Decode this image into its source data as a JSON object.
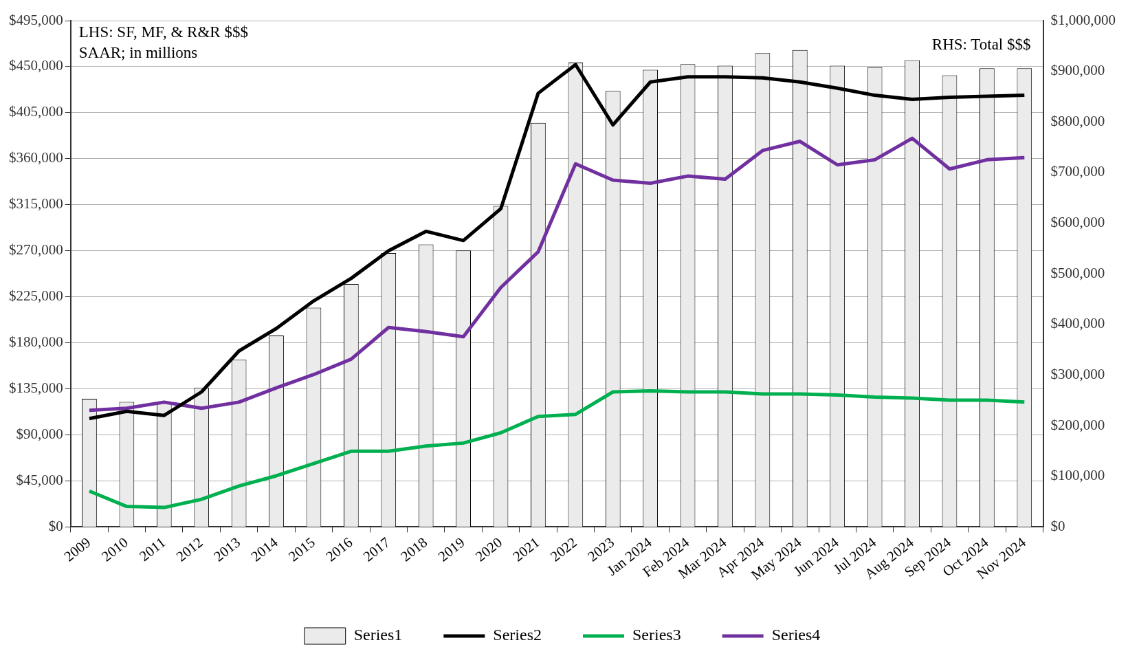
{
  "chart_data": {
    "type": "bar",
    "categories": [
      "2009",
      "2010",
      "2011",
      "2012",
      "2013",
      "2014",
      "2015",
      "2016",
      "2017",
      "2018",
      "2019",
      "2020",
      "2021",
      "2022",
      "2023",
      "Jan 2024",
      "Feb 2024",
      "Mar 2024",
      "Apr 2024",
      "May 2024",
      "Jun 2024",
      "Jul 2024",
      "Aug 2024",
      "Sep 2024",
      "Oct 2024",
      "Nov 2024"
    ],
    "series": [
      {
        "name": "Series1",
        "axis": "y2",
        "color": "#ebebeb",
        "values": [
          253000,
          247000,
          247000,
          275000,
          330000,
          378000,
          433000,
          480000,
          541000,
          558000,
          546000,
          634000,
          798000,
          917000,
          861000,
          903000,
          914000,
          911000,
          936000,
          942000,
          911000,
          908000,
          922000,
          892000,
          906000,
          906000
        ]
      },
      {
        "name": "Series2",
        "type": "line",
        "color": "#000000",
        "values": [
          106000,
          113000,
          109000,
          132000,
          172000,
          194000,
          221000,
          243000,
          270000,
          289000,
          280000,
          311000,
          424000,
          452000,
          393000,
          435000,
          440000,
          440000,
          439000,
          435000,
          429000,
          422000,
          418000,
          420000,
          421000,
          422000
        ]
      },
      {
        "name": "Series3",
        "type": "line",
        "color": "#00b050",
        "values": [
          35000,
          20000,
          19000,
          27000,
          40000,
          50000,
          62000,
          74000,
          74000,
          79000,
          82000,
          92000,
          108000,
          110000,
          132000,
          133000,
          132000,
          132000,
          130000,
          130000,
          129000,
          127000,
          126000,
          124000,
          124000,
          122000
        ]
      },
      {
        "name": "Series4",
        "type": "line",
        "color": "#7030a0",
        "values": [
          114000,
          116000,
          122000,
          116000,
          122000,
          136000,
          149000,
          164000,
          195000,
          191000,
          186000,
          234000,
          269000,
          355000,
          339000,
          336000,
          343000,
          340000,
          368000,
          377000,
          354000,
          359000,
          380000,
          350000,
          359000,
          361000
        ]
      }
    ],
    "ylim": [
      0,
      495000
    ],
    "yticks": [
      {
        "value": 0,
        "label": "$0"
      },
      {
        "value": 45000,
        "label": "$45,000"
      },
      {
        "value": 90000,
        "label": "$90,000"
      },
      {
        "value": 135000,
        "label": "$135,000"
      },
      {
        "value": 180000,
        "label": "$180,000"
      },
      {
        "value": 225000,
        "label": "$225,000"
      },
      {
        "value": 270000,
        "label": "$270,000"
      },
      {
        "value": 315000,
        "label": "$315,000"
      },
      {
        "value": 360000,
        "label": "$360,000"
      },
      {
        "value": 405000,
        "label": "$405,000"
      },
      {
        "value": 450000,
        "label": "$450,000"
      },
      {
        "value": 495000,
        "label": "$495,000"
      }
    ],
    "y2lim": [
      0,
      1000000
    ],
    "y2ticks": [
      {
        "value": 0,
        "label": "$0"
      },
      {
        "value": 100000,
        "label": "$100,000"
      },
      {
        "value": 200000,
        "label": "$200,000"
      },
      {
        "value": 300000,
        "label": "$300,000"
      },
      {
        "value": 400000,
        "label": "$400,000"
      },
      {
        "value": 500000,
        "label": "$500,000"
      },
      {
        "value": 600000,
        "label": "$600,000"
      },
      {
        "value": 700000,
        "label": "$700,000"
      },
      {
        "value": 800000,
        "label": "$800,000"
      },
      {
        "value": 900000,
        "label": "$900,000"
      },
      {
        "value": 1000000,
        "label": "$1,000,000"
      }
    ],
    "annotations": [
      "LHS: SF, MF, & R&R $$$",
      "SAAR; in millions",
      "RHS: Total $$$"
    ],
    "grid": "y",
    "legend": "bottom"
  }
}
